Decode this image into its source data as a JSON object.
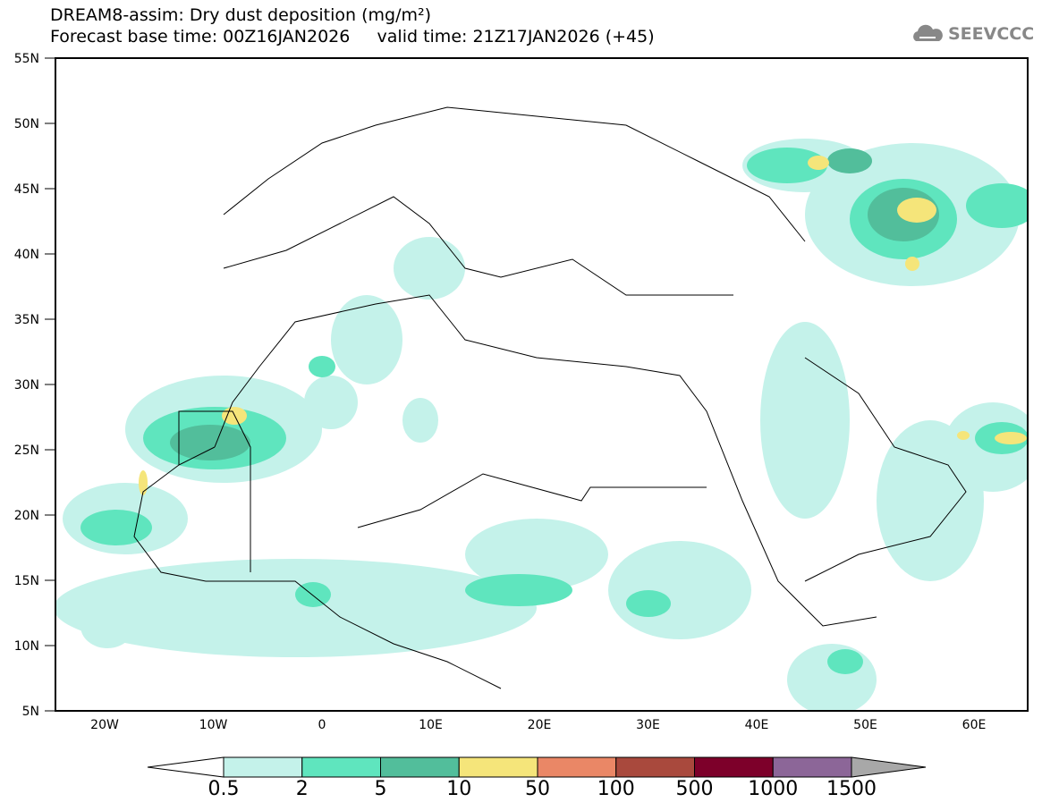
{
  "title": "DREAM8-assim: Dry dust deposition (mg/m²)",
  "subtitle": "Forecast base time: 00Z16JAN2026     valid time: 21Z17JAN2026 (+45)",
  "logo": "SEEVCCC",
  "lat_labels": [
    "55N",
    "50N",
    "45N",
    "40N",
    "35N",
    "30N",
    "25N",
    "20N",
    "15N",
    "10N",
    "5N"
  ],
  "lon_labels": [
    "20W",
    "10W",
    "0",
    "10E",
    "20E",
    "30E",
    "40E",
    "50E",
    "60E"
  ],
  "colorbar": {
    "labels": [
      "0.5",
      "2",
      "5",
      "10",
      "50",
      "100",
      "500",
      "1000",
      "1500"
    ],
    "colors": [
      "#c4f2ea",
      "#5fe5be",
      "#52be9b",
      "#f5e57a",
      "#ea8766",
      "#a9493d",
      "#7d002a",
      "#8c6698",
      "#a8a8a8"
    ]
  }
}
